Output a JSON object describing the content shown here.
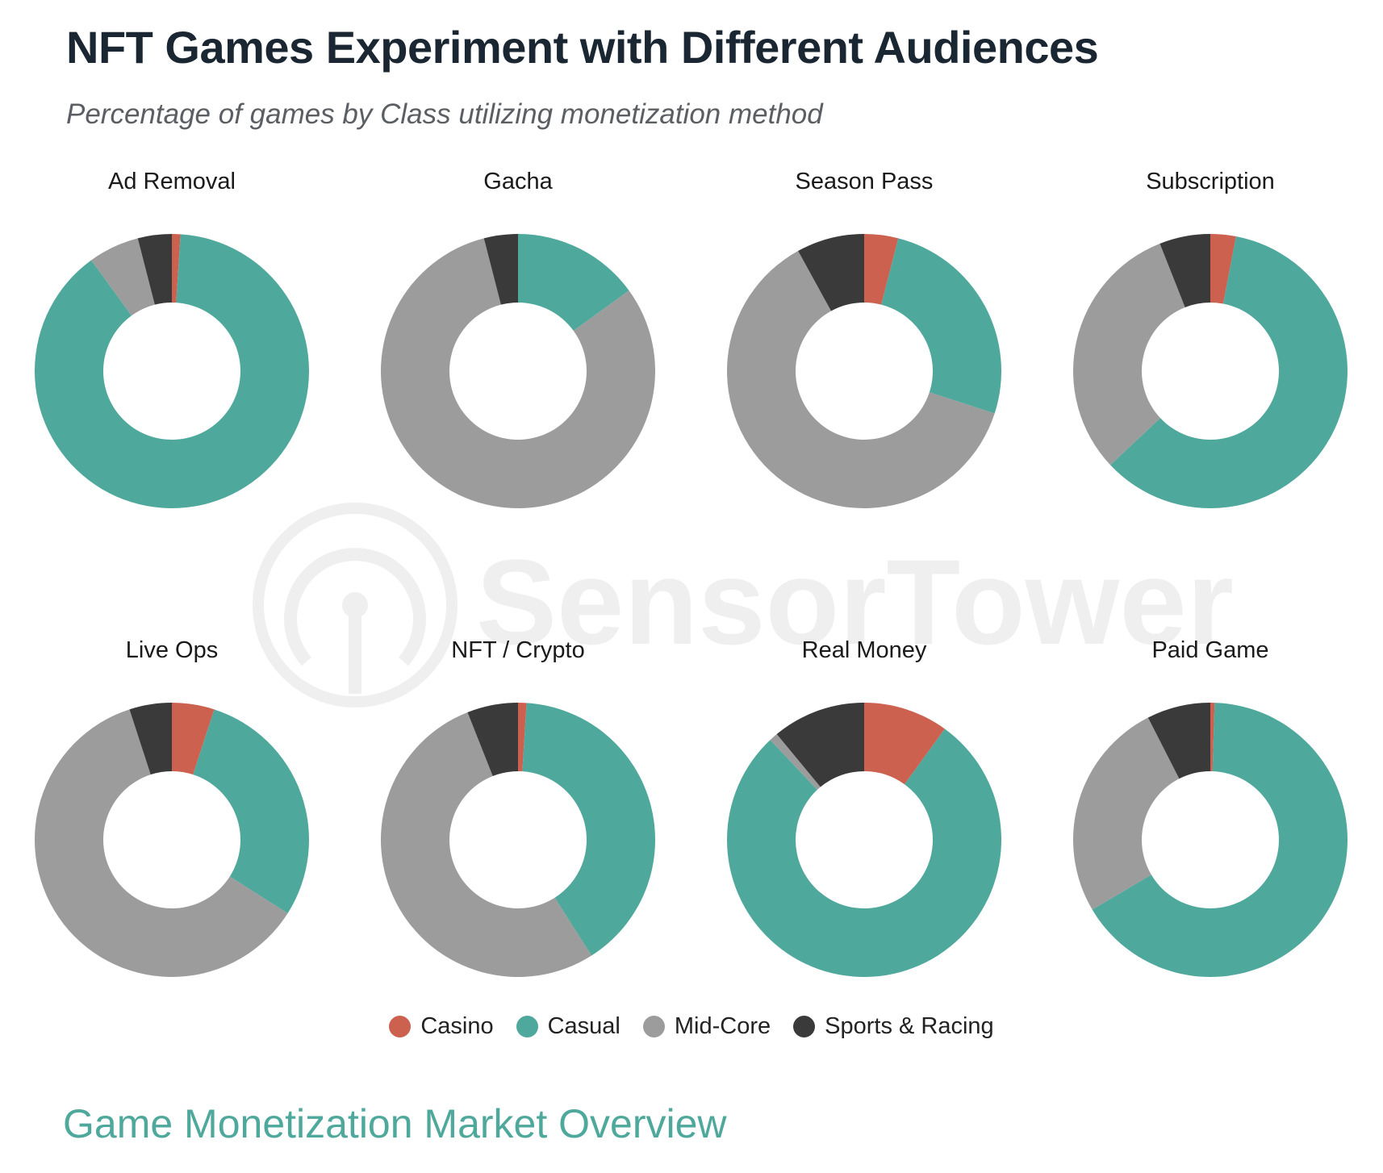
{
  "page": {
    "title": "NFT Games Experiment with Different Audiences",
    "subtitle": "Percentage of games by Class utilizing monetization method",
    "footer": "Game Monetization Market Overview",
    "watermark": "SensorTower"
  },
  "colors": {
    "Casino": "#cc6150",
    "Casual": "#4fa89c",
    "Mid-Core": "#9c9c9c",
    "Sports & Racing": "#3a3a3a"
  },
  "legend": [
    {
      "label": "Casino",
      "color": "#cc6150"
    },
    {
      "label": "Casual",
      "color": "#4fa89c"
    },
    {
      "label": "Mid-Core",
      "color": "#9c9c9c"
    },
    {
      "label": "Sports & Racing",
      "color": "#3a3a3a"
    }
  ],
  "chart_data": [
    {
      "type": "pie",
      "title": "Ad Removal",
      "categories": [
        "Casino",
        "Casual",
        "Mid-Core",
        "Sports & Racing"
      ],
      "values": [
        1,
        89,
        6,
        4
      ]
    },
    {
      "type": "pie",
      "title": "Gacha",
      "categories": [
        "Casino",
        "Casual",
        "Mid-Core",
        "Sports & Racing"
      ],
      "values": [
        0,
        15,
        81,
        4
      ]
    },
    {
      "type": "pie",
      "title": "Season Pass",
      "categories": [
        "Casino",
        "Casual",
        "Mid-Core",
        "Sports & Racing"
      ],
      "values": [
        4,
        26,
        62,
        8
      ]
    },
    {
      "type": "pie",
      "title": "Subscription",
      "categories": [
        "Casino",
        "Casual",
        "Mid-Core",
        "Sports & Racing"
      ],
      "values": [
        3,
        60,
        31,
        6
      ]
    },
    {
      "type": "pie",
      "title": "Live Ops",
      "categories": [
        "Casino",
        "Casual",
        "Mid-Core",
        "Sports & Racing"
      ],
      "values": [
        5,
        29,
        61,
        5
      ]
    },
    {
      "type": "pie",
      "title": "NFT / Crypto",
      "categories": [
        "Casino",
        "Casual",
        "Mid-Core",
        "Sports & Racing"
      ],
      "values": [
        1,
        40,
        53,
        6
      ]
    },
    {
      "type": "pie",
      "title": "Real Money",
      "categories": [
        "Casino",
        "Casual",
        "Mid-Core",
        "Sports & Racing"
      ],
      "values": [
        10,
        78,
        1,
        11
      ]
    },
    {
      "type": "pie",
      "title": "Paid Game",
      "categories": [
        "Casino",
        "Casual",
        "Mid-Core",
        "Sports & Racing"
      ],
      "values": [
        0.5,
        66,
        26,
        7.5
      ]
    }
  ]
}
